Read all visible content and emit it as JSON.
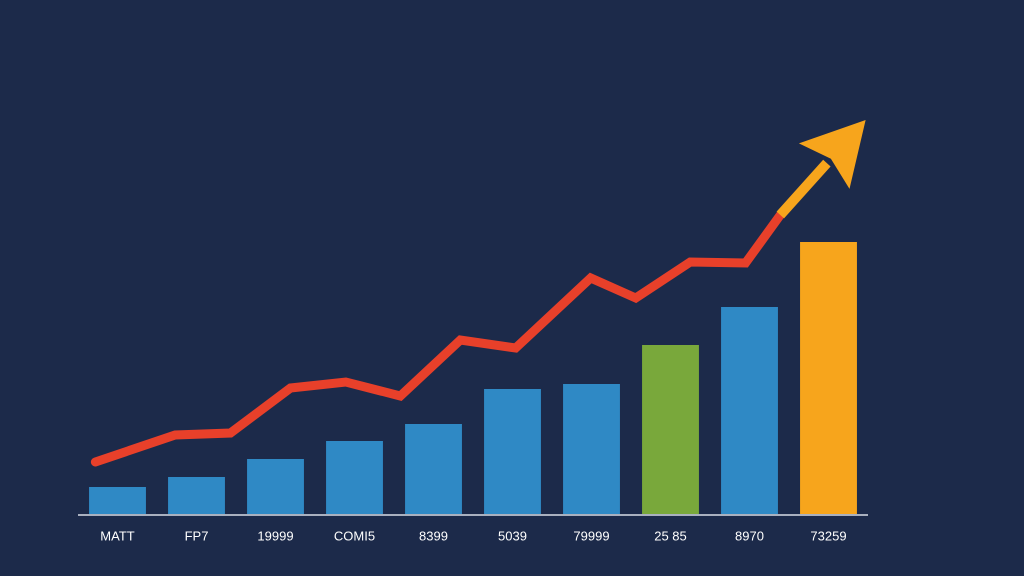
{
  "chart_data": {
    "type": "bar-line",
    "categories": [
      "MATT",
      "FP7",
      "19999",
      "COMI5",
      "8399",
      "5039",
      "79999",
      "25 85",
      "8970",
      "73259"
    ],
    "xlim": [
      0,
      10
    ],
    "ylim": [
      0,
      400
    ],
    "series": [
      {
        "type": "bar",
        "values": [
          27,
          37,
          55,
          73,
          90,
          125,
          130,
          169,
          207,
          272
        ],
        "colors": [
          "#2f89c5",
          "#2f89c5",
          "#2f89c5",
          "#2f89c5",
          "#2f89c5",
          "#2f89c5",
          "#2f89c5",
          "#79a83b",
          "#2f89c5",
          "#f7a51c"
        ]
      },
      {
        "type": "line",
        "color": "#e8402a",
        "x": [
          0.22,
          1.23,
          1.93,
          2.69,
          3.39,
          4.08,
          4.84,
          5.54,
          6.49,
          7.06,
          7.75,
          8.45,
          8.89
        ],
        "values": [
          52,
          79,
          81,
          126,
          132,
          118,
          174,
          166,
          236,
          216,
          252,
          251,
          299
        ]
      }
    ],
    "arrow": {
      "x": 9.97,
      "value": 394,
      "color": "#f7a51c"
    }
  }
}
